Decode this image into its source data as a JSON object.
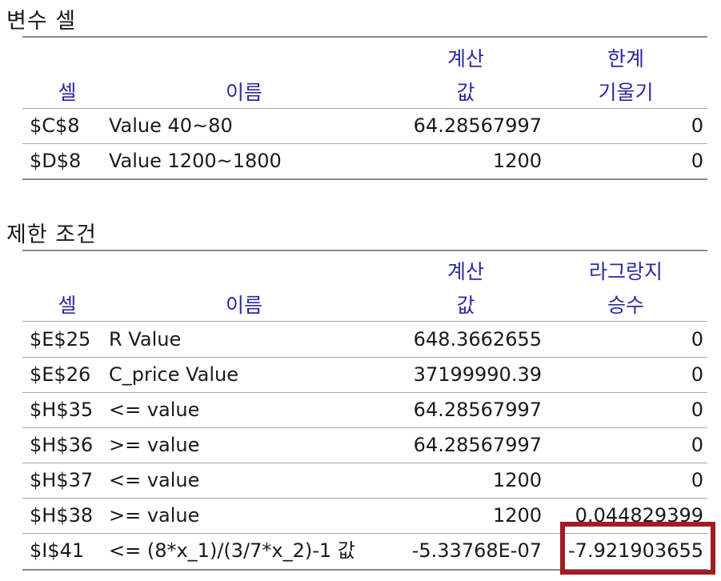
{
  "variable_cells": {
    "title": "변수 셀",
    "headers": {
      "cell": "셀",
      "name": "이름",
      "value_line1": "계산",
      "value_line2": "값",
      "extra_line1": "한계",
      "extra_line2": "기울기"
    },
    "rows": [
      {
        "cell": "$C$8",
        "name": "Value 40~80",
        "value": "64.28567997",
        "extra": "0"
      },
      {
        "cell": "$D$8",
        "name": "Value 1200~1800",
        "value": "1200",
        "extra": "0"
      }
    ]
  },
  "constraints": {
    "title": "제한 조건",
    "headers": {
      "cell": "셀",
      "name": "이름",
      "value_line1": "계산",
      "value_line2": "값",
      "extra_line1": "라그랑지",
      "extra_line2": "승수"
    },
    "rows": [
      {
        "cell": "$E$25",
        "name": "R Value",
        "value": "648.3662655",
        "extra": "0"
      },
      {
        "cell": "$E$26",
        "name": "C_price Value",
        "value": "37199990.39",
        "extra": "0"
      },
      {
        "cell": "$H$35",
        "name": "<= value",
        "value": "64.28567997",
        "extra": "0"
      },
      {
        "cell": "$H$36",
        "name": ">= value",
        "value": "64.28567997",
        "extra": "0"
      },
      {
        "cell": "$H$37",
        "name": "<= value",
        "value": "1200",
        "extra": "0"
      },
      {
        "cell": "$H$38",
        "name": ">= value",
        "value": "1200",
        "extra": "0.044829399"
      },
      {
        "cell": "$I$41",
        "name": "<= (8*x_1)/(3/7*x_2)-1 값",
        "value": "-5.33768E-07",
        "extra": "-7.921903655"
      }
    ]
  },
  "highlight_color": "#a01c22",
  "header_color": "#2a2aa0"
}
